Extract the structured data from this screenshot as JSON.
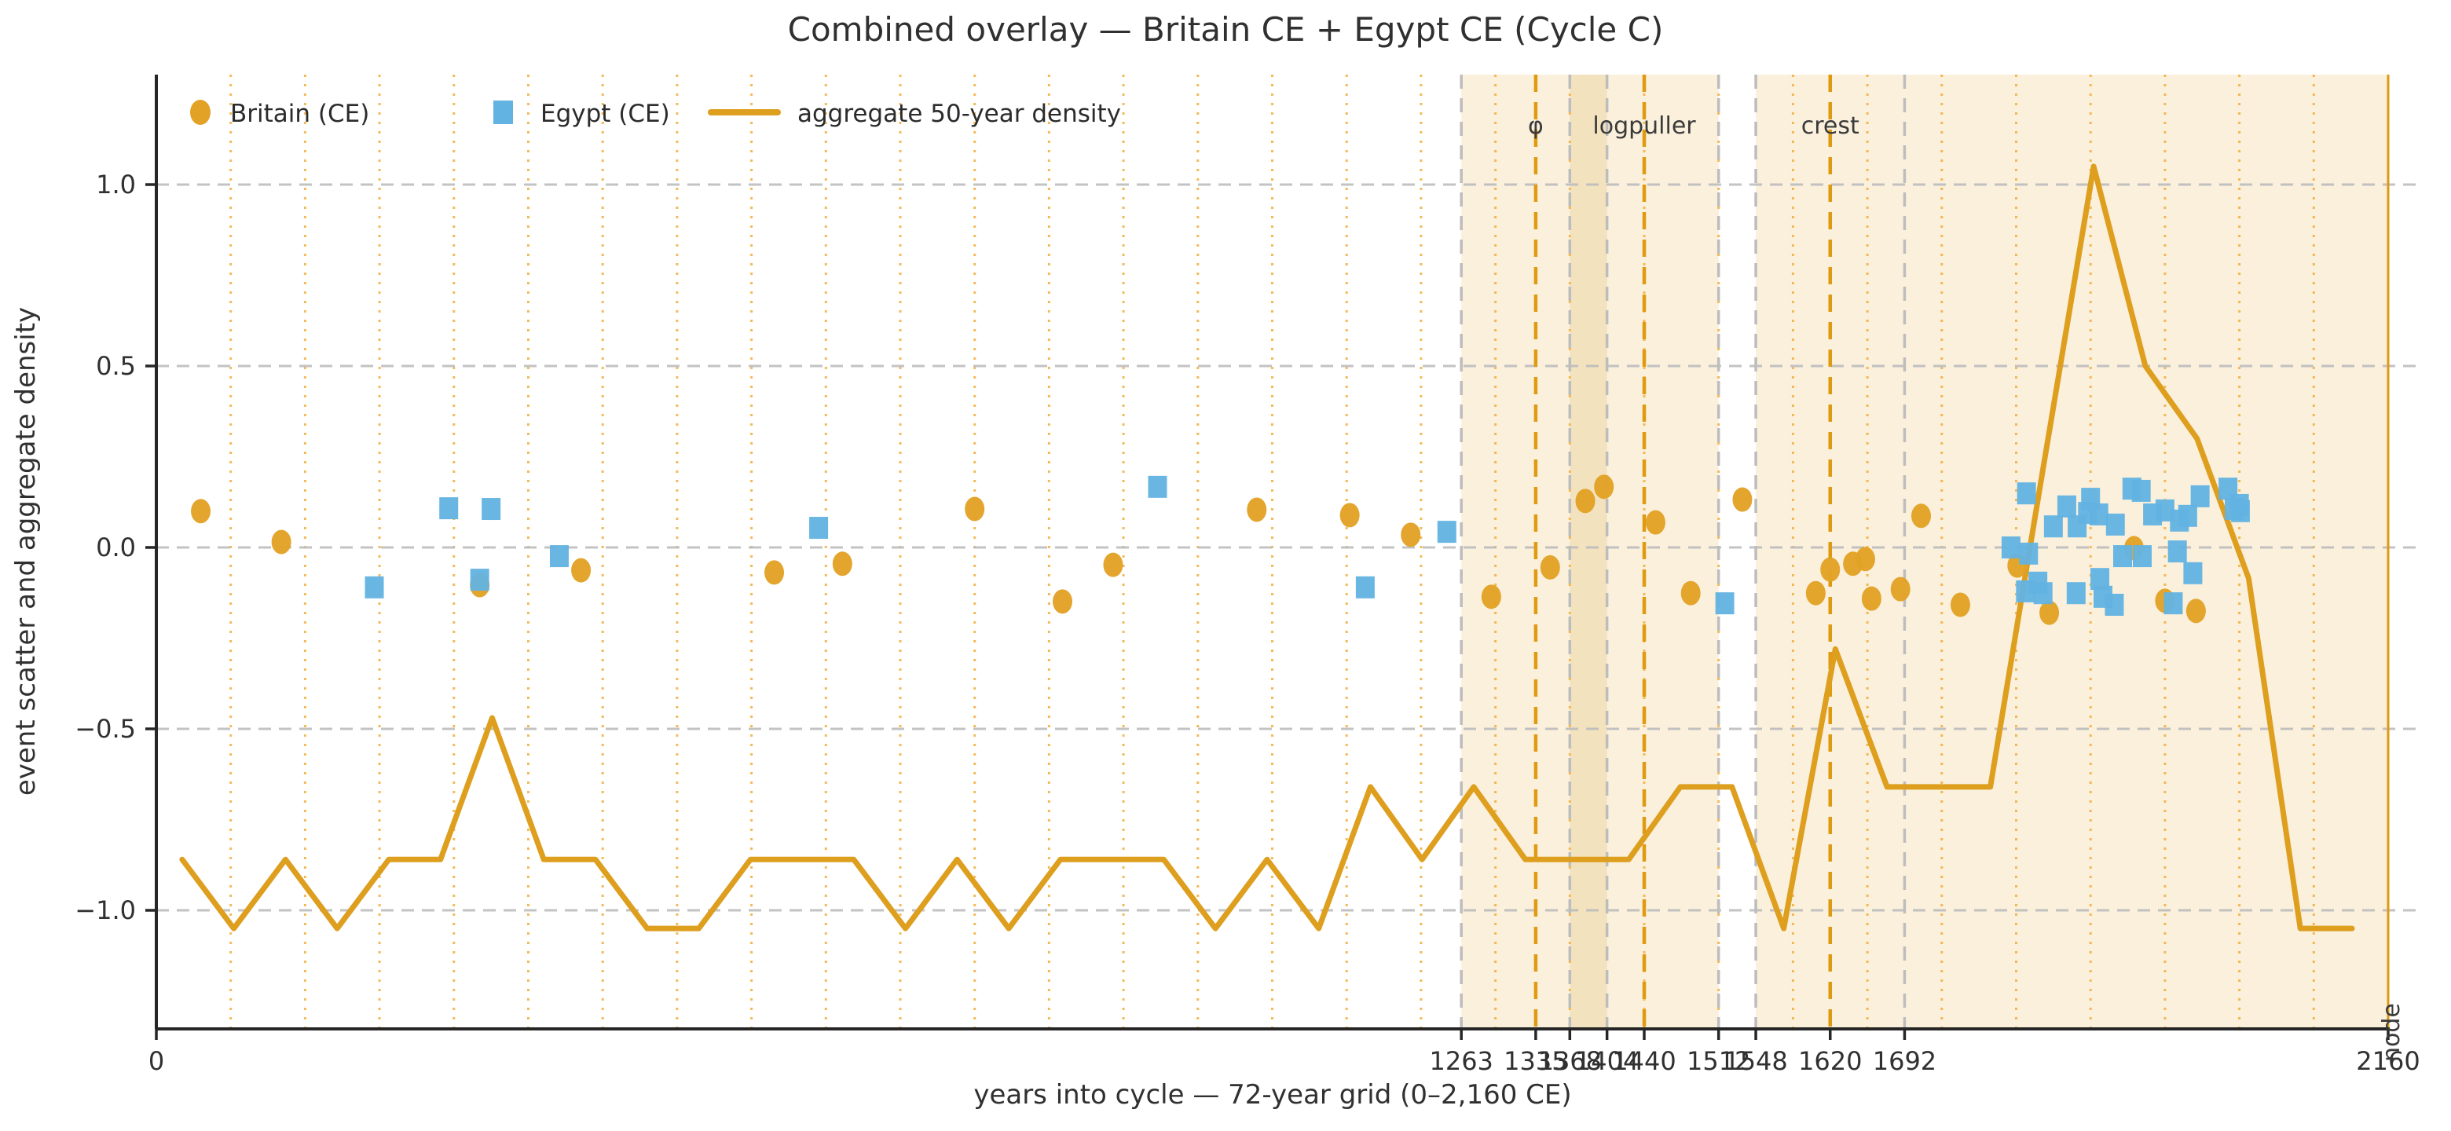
{
  "chart_data": {
    "type": "scatter",
    "title": "Combined overlay — Britain CE + Egypt CE (Cycle C)",
    "xlabel": "years into cycle — 72-year grid (0–2,160 CE)",
    "ylabel": "event scatter and aggregate density",
    "xlim": [
      0,
      2160
    ],
    "ylim": [
      -1.33,
      1.3
    ],
    "x_grid_interval_years": 72,
    "grid": {
      "vertical": "orange dotted every 72 years",
      "horizontal": "gray dashed at y ticks"
    },
    "legend_position": "top-left inline",
    "xticks": [
      {
        "value": 0,
        "label": "0"
      },
      {
        "value": 1263,
        "label": "1263"
      },
      {
        "value": 1335,
        "label": "1335"
      },
      {
        "value": 1368,
        "label": "1368"
      },
      {
        "value": 1404,
        "label": "1404"
      },
      {
        "value": 1440,
        "label": "1440"
      },
      {
        "value": 1512,
        "label": "1512"
      },
      {
        "value": 1548,
        "label": "1548"
      },
      {
        "value": 1620,
        "label": "1620"
      },
      {
        "value": 1692,
        "label": "1692"
      },
      {
        "value": 2160,
        "label": "2160"
      }
    ],
    "yticks": [
      {
        "value": 1.0,
        "label": "1.0"
      },
      {
        "value": 0.5,
        "label": "0.5"
      },
      {
        "value": 0.0,
        "label": "0.0"
      },
      {
        "value": -0.5,
        "label": "−0.5"
      },
      {
        "value": -1.0,
        "label": "−1.0"
      }
    ],
    "legend": [
      {
        "label": "Britain (CE)",
        "marker": "circle",
        "color": "#E2A226"
      },
      {
        "label": "Egypt (CE)",
        "marker": "square",
        "color": "#62B2E2"
      },
      {
        "label": "aggregate 50-year density",
        "marker": "line",
        "color": "#DE9E1E"
      }
    ],
    "spans": [
      {
        "from": 1263,
        "to": 1512,
        "shade": "light"
      },
      {
        "from": 1368,
        "to": 1404,
        "shade": "dark"
      },
      {
        "from": 1548,
        "to": 2160,
        "shade": "light"
      }
    ],
    "event_lines": [
      {
        "x": 1335,
        "label": "φ",
        "style": "dashed"
      },
      {
        "x": 1440,
        "label": "logpuller",
        "style": "dashed"
      },
      {
        "x": 1620,
        "label": "crest",
        "style": "dashed"
      },
      {
        "x": 2160,
        "label": "node",
        "style": "solid",
        "label_rotation": -90
      }
    ],
    "boundary_lines_x": [
      1263,
      1368,
      1404,
      1512,
      1548,
      1692
    ],
    "series": [
      {
        "name": "Britain (CE)",
        "marker": "circle",
        "color": "#E2A226",
        "points": [
          [
            43,
            0.1
          ],
          [
            121,
            0.015
          ],
          [
            313,
            -0.104
          ],
          [
            411,
            -0.063
          ],
          [
            598,
            -0.069
          ],
          [
            664,
            -0.045
          ],
          [
            792,
            0.106
          ],
          [
            877,
            -0.149
          ],
          [
            926,
            -0.048
          ],
          [
            1065,
            0.104
          ],
          [
            1155,
            0.089
          ],
          [
            1214,
            0.035
          ],
          [
            1292,
            -0.136
          ],
          [
            1349,
            -0.055
          ],
          [
            1383,
            0.128
          ],
          [
            1401,
            0.167
          ],
          [
            1451,
            0.069
          ],
          [
            1485,
            -0.126
          ],
          [
            1535,
            0.132
          ],
          [
            1606,
            -0.126
          ],
          [
            1620,
            -0.061
          ],
          [
            1642,
            -0.045
          ],
          [
            1654,
            -0.032
          ],
          [
            1660,
            -0.141
          ],
          [
            1688,
            -0.115
          ],
          [
            1708,
            0.087
          ],
          [
            1746,
            -0.158
          ],
          [
            1801,
            -0.05
          ],
          [
            1832,
            -0.18
          ],
          [
            1914,
            -0.002
          ],
          [
            1944,
            -0.147
          ],
          [
            1974,
            -0.175
          ]
        ]
      },
      {
        "name": "Egypt (CE)",
        "marker": "square",
        "color": "#62B2E2",
        "points": [
          [
            211,
            -0.11
          ],
          [
            283,
            0.108
          ],
          [
            313,
            -0.089
          ],
          [
            324,
            0.106
          ],
          [
            390,
            -0.024
          ],
          [
            641,
            0.054
          ],
          [
            969,
            0.167
          ],
          [
            1170,
            -0.11
          ],
          [
            1249,
            0.043
          ],
          [
            1518,
            -0.154
          ],
          [
            1795,
            0.0
          ],
          [
            1809,
            -0.121
          ],
          [
            1810,
            0.149
          ],
          [
            1812,
            -0.017
          ],
          [
            1821,
            -0.097
          ],
          [
            1826,
            -0.126
          ],
          [
            1836,
            0.058
          ],
          [
            1849,
            0.113
          ],
          [
            1858,
            -0.126
          ],
          [
            1859,
            0.058
          ],
          [
            1869,
            0.095
          ],
          [
            1872,
            0.134
          ],
          [
            1880,
            0.091
          ],
          [
            1881,
            -0.087
          ],
          [
            1884,
            -0.136
          ],
          [
            1895,
            -0.158
          ],
          [
            1896,
            0.063
          ],
          [
            1903,
            -0.024
          ],
          [
            1912,
            0.162
          ],
          [
            1921,
            0.156
          ],
          [
            1922,
            -0.024
          ],
          [
            1932,
            0.091
          ],
          [
            1944,
            0.102
          ],
          [
            1952,
            -0.154
          ],
          [
            1956,
            -0.011
          ],
          [
            1958,
            0.074
          ],
          [
            1966,
            0.087
          ],
          [
            1971,
            -0.071
          ],
          [
            1978,
            0.141
          ],
          [
            2005,
            0.162
          ],
          [
            2011,
            0.106
          ],
          [
            2016,
            0.117
          ],
          [
            2017,
            0.1
          ]
        ]
      },
      {
        "name": "aggregate 50-year density",
        "marker": "line",
        "color": "#DE9E1E",
        "points": [
          [
            25,
            -0.86
          ],
          [
            75,
            -1.05
          ],
          [
            125,
            -0.86
          ],
          [
            175,
            -1.05
          ],
          [
            225,
            -0.86
          ],
          [
            275,
            -0.86
          ],
          [
            325,
            -0.47
          ],
          [
            375,
            -0.86
          ],
          [
            425,
            -0.86
          ],
          [
            475,
            -1.05
          ],
          [
            525,
            -1.05
          ],
          [
            575,
            -0.86
          ],
          [
            625,
            -0.86
          ],
          [
            675,
            -0.86
          ],
          [
            725,
            -1.05
          ],
          [
            775,
            -0.86
          ],
          [
            825,
            -1.05
          ],
          [
            875,
            -0.86
          ],
          [
            925,
            -0.86
          ],
          [
            975,
            -0.86
          ],
          [
            1025,
            -1.05
          ],
          [
            1075,
            -0.86
          ],
          [
            1125,
            -1.05
          ],
          [
            1175,
            -0.66
          ],
          [
            1225,
            -0.86
          ],
          [
            1275,
            -0.66
          ],
          [
            1325,
            -0.86
          ],
          [
            1375,
            -0.86
          ],
          [
            1425,
            -0.86
          ],
          [
            1475,
            -0.66
          ],
          [
            1525,
            -0.66
          ],
          [
            1575,
            -1.05
          ],
          [
            1625,
            -0.28
          ],
          [
            1675,
            -0.66
          ],
          [
            1725,
            -0.66
          ],
          [
            1775,
            -0.66
          ],
          [
            1825,
            0.2
          ],
          [
            1875,
            1.05
          ],
          [
            1925,
            0.5
          ],
          [
            1975,
            0.3
          ],
          [
            2025,
            -0.085
          ],
          [
            2075,
            -1.05
          ],
          [
            2125,
            -1.05
          ]
        ]
      }
    ],
    "colors": {
      "orange": "#E2A226",
      "density_line": "#DE9E1E",
      "grid_orange": "#F2AE3C",
      "blue": "#62B2E2",
      "span_light": "#FAF0DC",
      "span_dark": "#F2E2BE",
      "gray_dash": "#BDBDBD",
      "axis": "#262626",
      "text": "#303030"
    }
  }
}
